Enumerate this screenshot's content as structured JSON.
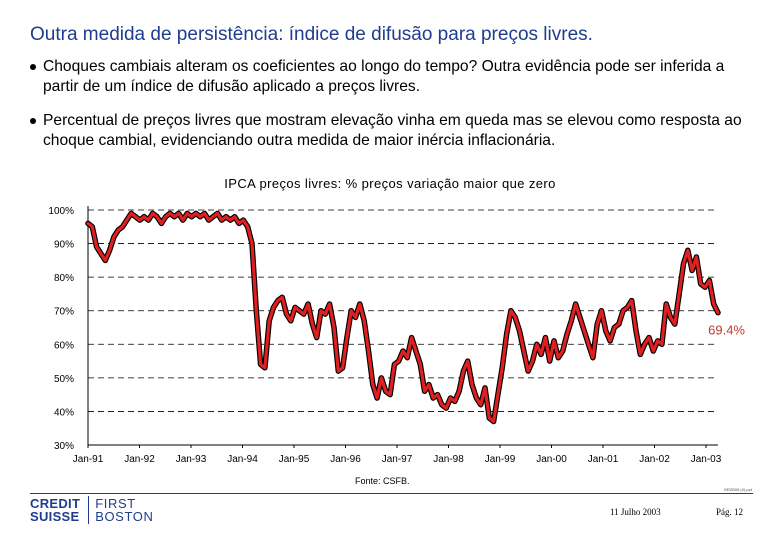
{
  "slide": {
    "title": "Outra medida de persistência: índice de difusão para preços livres.",
    "bullets": [
      "Choques cambiais alteram os coeficientes ao longo do tempo? Outra evidência pode ser inferida a partir de um índice de difusão aplicado a preços livres.",
      "Percentual de preços livres que mostram elevação vinha em queda mas se elevou como resposta ao choque cambial, evidenciando outra medida de maior inércia inflacionária."
    ]
  },
  "chart_data": {
    "type": "line",
    "title": "IPCA preços livres: % preços variação maior que zero",
    "xlabel": "",
    "ylabel": "",
    "ylim": [
      30,
      100
    ],
    "yticks": [
      30,
      40,
      50,
      60,
      70,
      80,
      90,
      100
    ],
    "ytick_labels": [
      "30%",
      "40%",
      "50%",
      "60%",
      "70%",
      "80%",
      "90%",
      "100%"
    ],
    "xtick_labels": [
      "Jan-91",
      "Jan-92",
      "Jan-93",
      "Jan-94",
      "Jan-95",
      "Jan-96",
      "Jan-97",
      "Jan-98",
      "Jan-99",
      "Jan-00",
      "Jan-01",
      "Jan-02",
      "Jan-03"
    ],
    "x_start": "Jan-91",
    "grid": "horizontal dashed",
    "series_color": "#e02020",
    "annotation": "69.4%",
    "series": [
      {
        "name": "IPCA preços livres",
        "values": [
          96,
          95,
          89,
          87,
          85,
          88,
          92,
          94,
          95,
          97,
          99,
          98,
          97,
          98,
          97,
          99,
          98,
          96,
          98,
          99,
          98,
          99,
          97,
          99,
          98,
          99,
          98,
          99,
          97,
          98,
          99,
          97,
          98,
          97,
          98,
          96,
          97,
          95,
          90,
          70,
          54,
          53,
          67,
          71,
          73,
          74,
          69,
          67,
          71,
          70,
          69,
          72,
          66,
          62,
          70,
          69,
          72,
          65,
          52,
          53,
          62,
          70,
          68,
          72,
          67,
          58,
          48,
          44,
          50,
          46,
          45,
          54,
          55,
          58,
          56,
          62,
          58,
          54,
          46,
          48,
          44,
          45,
          42,
          41,
          44,
          43,
          46,
          52,
          55,
          48,
          44,
          42,
          47,
          38,
          37,
          45,
          53,
          63,
          70,
          68,
          64,
          58,
          52,
          55,
          60,
          57,
          62,
          55,
          61,
          56,
          58,
          63,
          67,
          72,
          68,
          64,
          60,
          56,
          66,
          70,
          64,
          61,
          65,
          66,
          70,
          71,
          73,
          64,
          57,
          60,
          62,
          58,
          61,
          60,
          72,
          68,
          66,
          75,
          84,
          88,
          82,
          86,
          78,
          77,
          79,
          72,
          69.4
        ]
      }
    ]
  },
  "footer": {
    "source": "Fonte: CSFB.",
    "logo_line1": "CREDIT",
    "logo_line2": "SUISSE",
    "logo_line3": "FIRST",
    "logo_line4": "BOSTON",
    "file_code": "BRZB08 (0).ppt",
    "date": "11 Julho 2003",
    "page": "Pág. 12"
  }
}
